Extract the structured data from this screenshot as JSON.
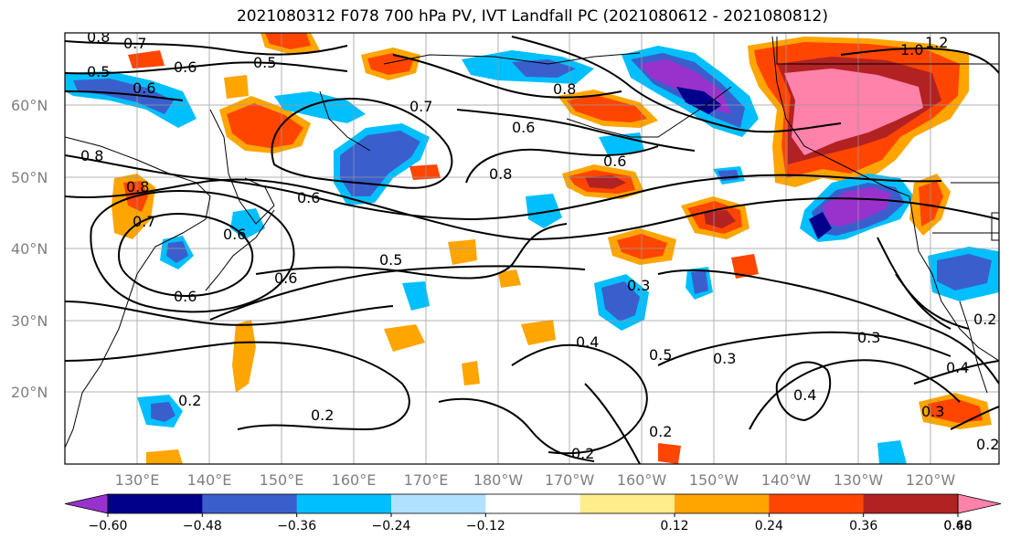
{
  "title": "2021080312 F078 700 hPa PV, IVT Landfall PC (2021080612 - 2021080812)",
  "lat_labels": [
    "60°N",
    "50°N",
    "40°N",
    "30°N",
    "20°N"
  ],
  "lon_labels": [
    "130°E",
    "140°E",
    "150°E",
    "160°E",
    "170°E",
    "180°W",
    "170°W",
    "160°W",
    "150°W",
    "140°W",
    "130°W",
    "120°W"
  ],
  "colorbar": {
    "tick_labels": [
      "−0.60",
      "−0.48",
      "−0.36",
      "−0.24",
      "−0.12",
      "0.12",
      "0.24",
      "0.36",
      "0.48",
      "0.60"
    ],
    "colors": [
      "#9932cc",
      "#00008b",
      "#3a5fcd",
      "#00bfff",
      "#b0e2ff",
      "#ffffff",
      "#ffec8b",
      "#ffa500",
      "#ff4500",
      "#b22222",
      "#ff82ab"
    ]
  },
  "contour_labels": [
    "0.8",
    "0.7",
    "0.6",
    "0.5",
    "0.5",
    "0.6",
    "0.7",
    "0.8",
    "0.6",
    "0.8",
    "0.6",
    "0.8",
    "0.8",
    "0.7",
    "0.6",
    "0.6",
    "0.5",
    "0.6",
    "0.6",
    "0.3",
    "0.4",
    "0.5",
    "0.3",
    "0.3",
    "0.4",
    "0.2",
    "0.2",
    "0.2",
    "0.2",
    "0.3",
    "0.4",
    "0.2",
    "0.2",
    "1.0",
    "1.2"
  ]
}
